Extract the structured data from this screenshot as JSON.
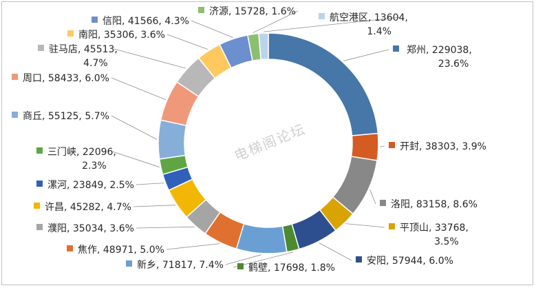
{
  "chart_data": {
    "type": "pie",
    "variant": "doughnut",
    "title": "",
    "watermark": "电梯阁论坛",
    "legend": "none",
    "slices": [
      {
        "name": "郑州",
        "value": 229038,
        "percent": "23.6%",
        "color": "#4677a8",
        "label_lines": [
          "郑州, 229038,",
          "23.6%"
        ]
      },
      {
        "name": "开封",
        "value": 38303,
        "percent": "3.9%",
        "color": "#d45b22",
        "label_lines": [
          "开封, 38303, 3.9%"
        ]
      },
      {
        "name": "洛阳",
        "value": 83158,
        "percent": "8.6%",
        "color": "#888888",
        "label_lines": [
          "洛阳, 83158, 8.6%"
        ]
      },
      {
        "name": "平顶山",
        "value": 33768,
        "percent": "3.5%",
        "color": "#d9a300",
        "label_lines": [
          "平顶山, 33768,",
          "3.5%"
        ]
      },
      {
        "name": "安阳",
        "value": 57944,
        "percent": "6.0%",
        "color": "#2e4f8f",
        "label_lines": [
          "安阳, 57944, 6.0%"
        ]
      },
      {
        "name": "鹤壁",
        "value": 17698,
        "percent": "1.8%",
        "color": "#4c8a2f",
        "label_lines": [
          "鹤壁, 17698, 1.8%"
        ]
      },
      {
        "name": "新乡",
        "value": 71817,
        "percent": "7.4%",
        "color": "#6a9fd4",
        "label_lines": [
          "新乡, 71817, 7.4%"
        ]
      },
      {
        "name": "焦作",
        "value": 48971,
        "percent": "5.0%",
        "color": "#e07030",
        "label_lines": [
          "焦作, 48971, 5.0%"
        ]
      },
      {
        "name": "濮阳",
        "value": 35034,
        "percent": "3.6%",
        "color": "#a5a5a5",
        "label_lines": [
          "濮阳, 35034, 3.6%"
        ]
      },
      {
        "name": "许昌",
        "value": 45282,
        "percent": "4.7%",
        "color": "#f2b705",
        "label_lines": [
          "许昌, 45282, 4.7%"
        ]
      },
      {
        "name": "漯河",
        "value": 23849,
        "percent": "2.5%",
        "color": "#3060b8",
        "label_lines": [
          "漯河, 23849, 2.5%"
        ]
      },
      {
        "name": "三门峡",
        "value": 22096,
        "percent": "2.3%",
        "color": "#5fa544",
        "label_lines": [
          "三门峡, 22096,",
          "2.3%"
        ]
      },
      {
        "name": "商丘",
        "value": 55125,
        "percent": "5.7%",
        "color": "#86aed9",
        "label_lines": [
          "商丘, 55125, 5.7%"
        ]
      },
      {
        "name": "周口",
        "value": 58433,
        "percent": "6.0%",
        "color": "#f0987a",
        "label_lines": [
          "周口, 58433, 6.0%"
        ]
      },
      {
        "name": "驻马店",
        "value": 45513,
        "percent": "4.7%",
        "color": "#b8b8b8",
        "label_lines": [
          "驻马店, 45513,",
          "4.7%"
        ]
      },
      {
        "name": "南阳",
        "value": 35306,
        "percent": "3.6%",
        "color": "#ffc960",
        "label_lines": [
          "南阳, 35306, 3.6%"
        ]
      },
      {
        "name": "信阳",
        "value": 41566,
        "percent": "4.3%",
        "color": "#6c8fd0",
        "label_lines": [
          "信阳, 41566, 4.3%"
        ]
      },
      {
        "name": "济源",
        "value": 15728,
        "percent": "1.6%",
        "color": "#8cc070",
        "label_lines": [
          "济源, 15728, 1.6%"
        ]
      },
      {
        "name": "航空港区",
        "value": 13604,
        "percent": "1.4%",
        "color": "#bcd3ec",
        "label_lines": [
          "航空港区, 13604,",
          "1.4%"
        ]
      }
    ]
  }
}
